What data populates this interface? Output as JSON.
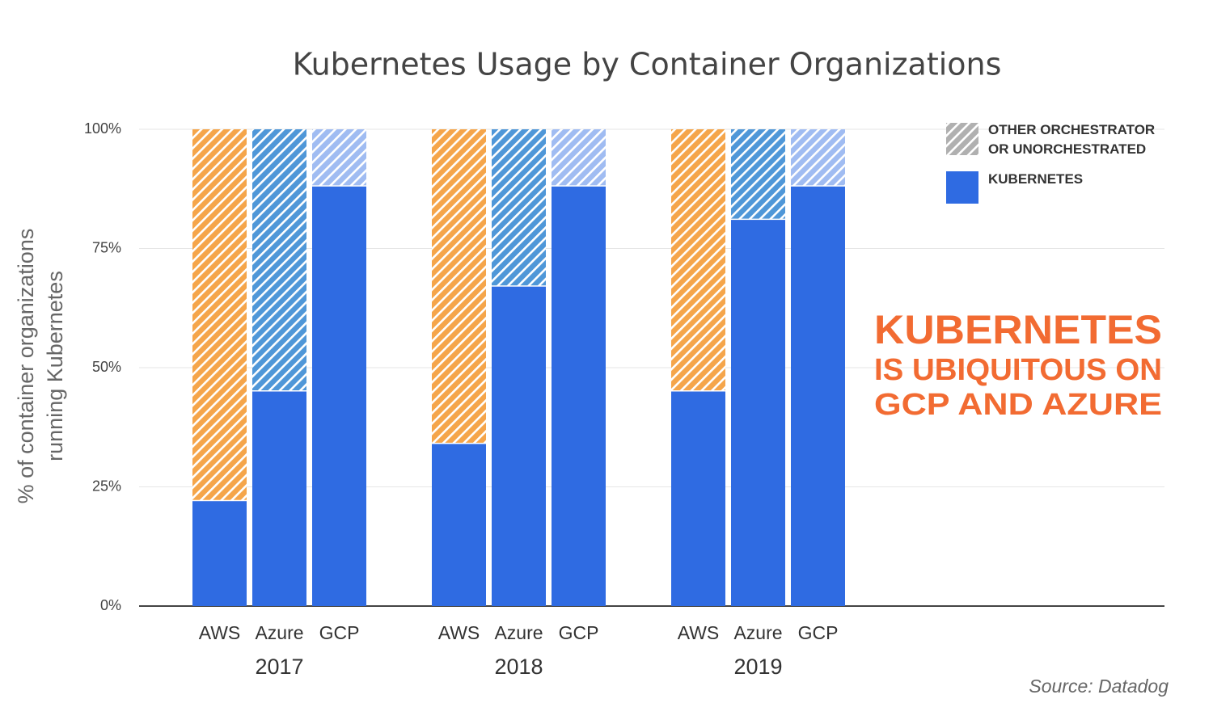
{
  "chart_data": {
    "type": "stacked_bar",
    "title": "Kubernetes Usage by Container Organizations",
    "ylabel": "% of container organizations running Kubernetes",
    "groups": [
      "2017",
      "2018",
      "2019"
    ],
    "categories": [
      "AWS",
      "Azure",
      "GCP",
      "AWS",
      "Azure",
      "GCP",
      "AWS",
      "Azure",
      "GCP"
    ],
    "series": [
      {
        "name": "KUBERNETES",
        "color": "#2f6be2",
        "hatched": false,
        "values": [
          22,
          45,
          88,
          34,
          67,
          88,
          45,
          81,
          88
        ]
      },
      {
        "name": "OTHER ORCHESTRATOR OR UNORCHESTRATED",
        "color": "#b0b0b0",
        "hatched": true,
        "bar_colors": [
          "#f5a54a",
          "#4f97d8",
          "#a0bcf2"
        ],
        "values": [
          78,
          55,
          12,
          66,
          33,
          12,
          55,
          19,
          12
        ]
      }
    ],
    "ylim": [
      0,
      100
    ],
    "yticks": [
      {
        "value": 0,
        "label": "0%"
      },
      {
        "value": 25,
        "label": "25%"
      },
      {
        "value": 50,
        "label": "50%"
      },
      {
        "value": 75,
        "label": "75%"
      },
      {
        "value": 100,
        "label": "100%"
      }
    ],
    "grid": true,
    "legend": "top-right",
    "annotation": {
      "lines": [
        "KUBERNETES",
        "IS UBIQUITOUS ON",
        "GCP AND AZURE"
      ],
      "color": "#f26b32"
    },
    "source": "Source: Datadog"
  }
}
